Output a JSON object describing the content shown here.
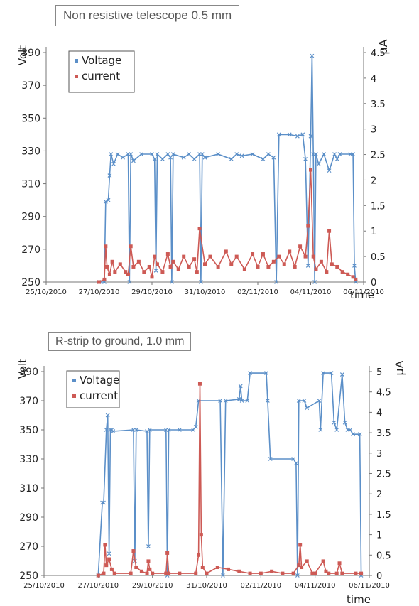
{
  "chart_data": [
    {
      "type": "line",
      "title": "Non resistive telescope 0.5 mm",
      "ylabel": "Volt",
      "y2label": "µA",
      "xlabel": "time",
      "ylim": [
        250,
        390
      ],
      "y2lim": [
        0,
        4.5
      ],
      "yticks": [
        "250",
        "270",
        "290",
        "310",
        "330",
        "350",
        "370",
        "390"
      ],
      "y2ticks": [
        "0",
        "0.5",
        "1",
        "1.5",
        "2",
        "2.5",
        "3",
        "3.5",
        "4",
        "4.5"
      ],
      "xticks": [
        "25/10/2010",
        "27/10/2010",
        "29/10/2010",
        "31/10/2010",
        "02/11/2010",
        "04/11/2010",
        "06/11/2010"
      ],
      "xlim": [
        0,
        12
      ],
      "legend": "top-left",
      "series": [
        {
          "name": "Voltage",
          "axis": "left",
          "color": "#5b8fc8",
          "x": [
            2.0,
            2.2,
            2.25,
            2.35,
            2.4,
            2.45,
            2.55,
            2.7,
            2.9,
            3.1,
            3.15,
            3.2,
            3.3,
            3.6,
            4.0,
            4.1,
            4.15,
            4.2,
            4.4,
            4.6,
            4.7,
            4.75,
            4.8,
            5.2,
            5.4,
            5.6,
            5.8,
            5.85,
            5.9,
            6.0,
            6.5,
            7.0,
            7.2,
            7.4,
            7.8,
            8.2,
            8.4,
            8.6,
            8.7,
            8.8,
            9.2,
            9.5,
            9.7,
            9.8,
            9.9,
            10.0,
            10.05,
            10.1,
            10.15,
            10.2,
            10.3,
            10.5,
            10.7,
            10.9,
            11.0,
            11.1,
            11.5,
            11.6,
            11.65,
            11.7
          ],
          "values": [
            250,
            250,
            299,
            300,
            315,
            328,
            322,
            328,
            326,
            328,
            250,
            328,
            324,
            328,
            328,
            325,
            257,
            328,
            325,
            328,
            326,
            250,
            328,
            326,
            328,
            325,
            328,
            250,
            328,
            326,
            328,
            325,
            328,
            327,
            328,
            325,
            328,
            326,
            250,
            340,
            340,
            339,
            340,
            325,
            260,
            339,
            388,
            328,
            250,
            328,
            322,
            328,
            318,
            328,
            325,
            328,
            328,
            328,
            260,
            250
          ]
        },
        {
          "name": "current",
          "axis": "right",
          "color": "#cd5a55",
          "x": [
            2.0,
            2.2,
            2.25,
            2.3,
            2.4,
            2.5,
            2.6,
            2.8,
            3.0,
            3.1,
            3.2,
            3.3,
            3.5,
            3.7,
            3.9,
            4.0,
            4.1,
            4.2,
            4.4,
            4.6,
            4.7,
            4.8,
            5.0,
            5.2,
            5.4,
            5.6,
            5.7,
            5.8,
            6.0,
            6.2,
            6.5,
            6.8,
            7.0,
            7.2,
            7.5,
            7.8,
            8.0,
            8.2,
            8.4,
            8.6,
            8.8,
            9.0,
            9.2,
            9.4,
            9.6,
            9.8,
            9.9,
            10.0,
            10.1,
            10.2,
            10.4,
            10.6,
            10.7,
            10.8,
            11.0,
            11.2,
            11.4,
            11.6,
            11.7
          ],
          "values": [
            0,
            0.05,
            0.7,
            0.3,
            0.15,
            0.4,
            0.2,
            0.35,
            0.2,
            0.15,
            0.7,
            0.3,
            0.4,
            0.2,
            0.3,
            0.1,
            0.5,
            0.35,
            0.2,
            0.55,
            0.3,
            0.4,
            0.25,
            0.5,
            0.3,
            0.45,
            0.2,
            1.05,
            0.35,
            0.5,
            0.3,
            0.6,
            0.35,
            0.5,
            0.25,
            0.55,
            0.3,
            0.55,
            0.3,
            0.4,
            0.5,
            0.35,
            0.6,
            0.3,
            0.7,
            0.5,
            1.1,
            2.2,
            0.5,
            0.25,
            0.4,
            0.2,
            1.0,
            0.35,
            0.3,
            0.2,
            0.15,
            0.1,
            0.05
          ]
        }
      ]
    },
    {
      "type": "line",
      "title": "R-strip to ground, 1.0 mm",
      "ylabel": "Volt",
      "y2label": "µA",
      "xlabel": "time",
      "ylim": [
        250,
        390
      ],
      "y2lim": [
        0,
        5
      ],
      "yticks": [
        "250",
        "270",
        "290",
        "310",
        "330",
        "350",
        "370",
        "390"
      ],
      "y2ticks": [
        "0",
        "0.5",
        "1",
        "1.5",
        "2",
        "2.5",
        "3",
        "3.5",
        "4",
        "4.5",
        "5"
      ],
      "xticks": [
        "25/10/2010",
        "27/10/2010",
        "29/10/2010",
        "31/10/2010",
        "02/11/2010",
        "04/11/2010",
        "06/11/2010"
      ],
      "xlim": [
        0,
        12
      ],
      "legend": "top-left",
      "series": [
        {
          "name": "Voltage",
          "axis": "left",
          "color": "#5b8fc8",
          "x": [
            2.0,
            2.15,
            2.2,
            2.3,
            2.35,
            2.4,
            2.45,
            2.5,
            2.55,
            3.3,
            3.35,
            3.4,
            3.8,
            3.85,
            3.9,
            4.5,
            4.55,
            4.6,
            5.0,
            5.5,
            5.6,
            5.7,
            6.5,
            6.6,
            6.7,
            7.2,
            7.25,
            7.3,
            7.5,
            7.6,
            8.2,
            8.25,
            8.35,
            9.2,
            9.3,
            9.35,
            9.4,
            9.6,
            9.7,
            10.15,
            10.2,
            10.3,
            10.6,
            10.7,
            10.8,
            11.0,
            11.1,
            11.2,
            11.3,
            11.4,
            11.65,
            11.7
          ],
          "values": [
            250,
            300,
            300,
            350,
            360,
            265,
            350,
            350,
            349,
            350,
            260,
            350,
            349,
            270,
            350,
            350,
            250,
            350,
            350,
            350,
            352,
            370,
            370,
            250,
            370,
            371,
            380,
            370,
            370,
            389,
            389,
            370,
            330,
            330,
            327,
            250,
            370,
            370,
            365,
            370,
            350,
            389,
            389,
            355,
            350,
            388,
            355,
            350,
            350,
            347,
            347,
            250
          ]
        },
        {
          "name": "current",
          "axis": "right",
          "color": "#cd5a55",
          "x": [
            2.0,
            2.2,
            2.25,
            2.3,
            2.4,
            2.5,
            2.6,
            3.2,
            3.3,
            3.4,
            3.6,
            3.8,
            3.85,
            3.9,
            4.0,
            4.5,
            4.55,
            4.6,
            5.0,
            5.6,
            5.7,
            5.75,
            5.8,
            5.85,
            6.0,
            6.4,
            6.8,
            7.2,
            7.6,
            8.0,
            8.4,
            8.8,
            9.2,
            9.4,
            9.45,
            9.5,
            9.7,
            9.9,
            10.0,
            10.3,
            10.4,
            10.5,
            10.8,
            10.9,
            11.0,
            11.5,
            11.7
          ],
          "values": [
            0,
            0.05,
            0.75,
            0.25,
            0.4,
            0.15,
            0.05,
            0.05,
            0.6,
            0.2,
            0.1,
            0.05,
            0.35,
            0.15,
            0.05,
            0.05,
            0.55,
            0.05,
            0.05,
            0.05,
            0.5,
            4.7,
            1.0,
            0.2,
            0.05,
            0.2,
            0.15,
            0.1,
            0.05,
            0.05,
            0.1,
            0.05,
            0.05,
            0.25,
            0.75,
            0.2,
            0.35,
            0.05,
            0.05,
            0.35,
            0.1,
            0.05,
            0.05,
            0.3,
            0.05,
            0.05,
            0.05
          ]
        }
      ]
    }
  ]
}
